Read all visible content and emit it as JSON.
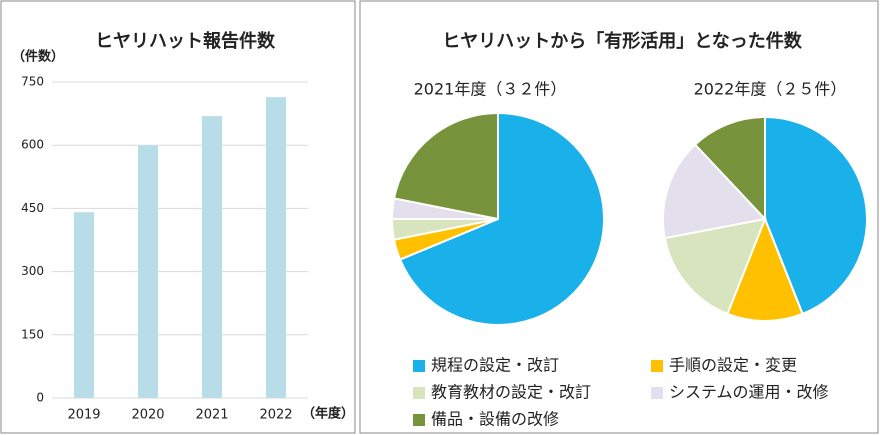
{
  "chart_data": [
    {
      "type": "bar",
      "title": "ヒヤリハット報告件数",
      "y_label": "（件数）",
      "x_label": "（年度）",
      "categories": [
        "2019",
        "2020",
        "2021",
        "2022"
      ],
      "values": [
        441,
        600,
        669,
        714
      ],
      "color": "#b7dee8",
      "ylim": [
        0,
        750
      ],
      "yticks": [
        0,
        150,
        300,
        450,
        600,
        750
      ],
      "grid": true
    },
    {
      "type": "pie",
      "title": "ヒヤリハットから「有形活用」となった件数",
      "categories": [
        "規程の設定・改訂",
        "手順の設定・変更",
        "教育教材の設定・改訂",
        "システムの運用・改修",
        "備品・設備の改修"
      ],
      "colors": [
        "#1ab0ea",
        "#ffc000",
        "#d7e4bd",
        "#e4dfec",
        "#77933c"
      ],
      "series": [
        {
          "name": "2021年度（３２件）",
          "values": [
            22,
            1,
            1,
            1,
            7
          ]
        },
        {
          "name": "2022年度（２５件）",
          "values": [
            11,
            3,
            4,
            4,
            3
          ]
        }
      ]
    }
  ]
}
